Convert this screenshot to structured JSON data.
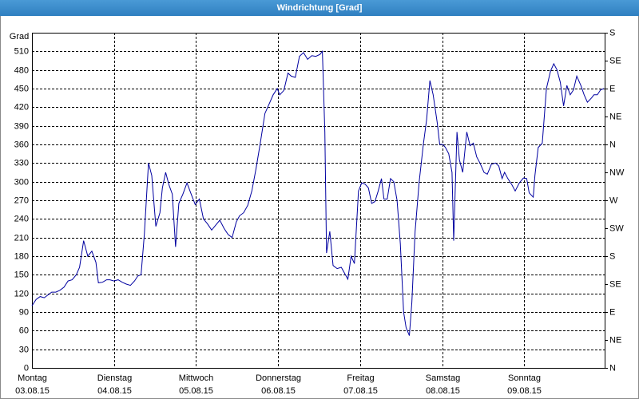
{
  "chart_data": {
    "type": "line",
    "title": "Windrichtung [Grad]",
    "ylabel": "Grad",
    "xlim": [
      0,
      6.98
    ],
    "xticks": [
      {
        "value": 0,
        "label": [
          "Montag",
          "03.08.15"
        ]
      },
      {
        "value": 1,
        "label": [
          "Dienstag",
          "04.08.15"
        ]
      },
      {
        "value": 2,
        "label": [
          "Mittwoch",
          "05.08.15"
        ]
      },
      {
        "value": 3,
        "label": [
          "Donnerstag",
          "06.08.15"
        ]
      },
      {
        "value": 4,
        "label": [
          "Freitag",
          "07.08.15"
        ]
      },
      {
        "value": 5,
        "label": [
          "Samstag",
          "08.08.15"
        ]
      },
      {
        "value": 6,
        "label": [
          "Sonntag",
          "09.08.15"
        ]
      }
    ],
    "ylim": [
      0,
      540
    ],
    "yticks": [
      0,
      30,
      60,
      90,
      120,
      150,
      180,
      210,
      240,
      270,
      300,
      330,
      360,
      390,
      420,
      450,
      480,
      510
    ],
    "y2lim": [
      0,
      540
    ],
    "y2ticks": [
      {
        "value": 0,
        "label": "N"
      },
      {
        "value": 45,
        "label": "NE"
      },
      {
        "value": 90,
        "label": "E"
      },
      {
        "value": 135,
        "label": "SE"
      },
      {
        "value": 180,
        "label": "S"
      },
      {
        "value": 225,
        "label": "SW"
      },
      {
        "value": 270,
        "label": "W"
      },
      {
        "value": 315,
        "label": "NW"
      },
      {
        "value": 360,
        "label": "N"
      },
      {
        "value": 405,
        "label": "NE"
      },
      {
        "value": 450,
        "label": "E"
      },
      {
        "value": 495,
        "label": "SE"
      },
      {
        "value": 540,
        "label": "S"
      }
    ],
    "grid": true,
    "series": [
      {
        "color": "#0000a0",
        "x": [
          0,
          0.05,
          0.1,
          0.15,
          0.19,
          0.24,
          0.29,
          0.34,
          0.39,
          0.44,
          0.49,
          0.54,
          0.58,
          0.63,
          0.68,
          0.73,
          0.78,
          0.81,
          0.86,
          0.91,
          0.95,
          1.0,
          1.05,
          1.1,
          1.15,
          1.2,
          1.25,
          1.29,
          1.33,
          1.37,
          1.42,
          1.46,
          1.51,
          1.56,
          1.59,
          1.63,
          1.67,
          1.71,
          1.75,
          1.79,
          1.84,
          1.89,
          1.94,
          1.99,
          2.04,
          2.09,
          2.14,
          2.19,
          2.24,
          2.29,
          2.34,
          2.39,
          2.44,
          2.49,
          2.53,
          2.58,
          2.63,
          2.68,
          2.73,
          2.78,
          2.84,
          2.89,
          2.94,
          2.99,
          3.02,
          3.07,
          3.12,
          3.16,
          3.21,
          3.26,
          3.31,
          3.36,
          3.41,
          3.46,
          3.51,
          3.54,
          3.57,
          3.59,
          3.63,
          3.67,
          3.72,
          3.77,
          3.82,
          3.85,
          3.89,
          3.93,
          3.98,
          4.02,
          4.06,
          4.1,
          4.14,
          4.18,
          4.22,
          4.26,
          4.29,
          4.33,
          4.37,
          4.41,
          4.45,
          4.49,
          4.53,
          4.56,
          4.6,
          4.63,
          4.67,
          4.72,
          4.77,
          4.81,
          4.85,
          4.89,
          4.94,
          4.97,
          5.01,
          5.04,
          5.08,
          5.12,
          5.14,
          5.18,
          5.21,
          5.25,
          5.3,
          5.34,
          5.38,
          5.42,
          5.46,
          5.51,
          5.55,
          5.6,
          5.65,
          5.69,
          5.73,
          5.76,
          5.8,
          5.85,
          5.89,
          5.94,
          5.99,
          6.03,
          6.06,
          6.11,
          6.13,
          6.17,
          6.22,
          6.27,
          6.32,
          6.36,
          6.4,
          6.44,
          6.48,
          6.52,
          6.56,
          6.6,
          6.64,
          6.69,
          6.73,
          6.77,
          6.82,
          6.85,
          6.89,
          6.93,
          6.97
        ],
        "values": [
          100,
          110,
          115,
          113,
          117,
          122,
          122,
          125,
          130,
          140,
          142,
          150,
          162,
          205,
          180,
          188,
          170,
          137,
          138,
          142,
          142,
          140,
          142,
          138,
          135,
          133,
          140,
          148,
          150,
          215,
          330,
          310,
          228,
          250,
          290,
          315,
          295,
          280,
          195,
          265,
          280,
          298,
          280,
          263,
          272,
          240,
          232,
          222,
          230,
          238,
          225,
          215,
          210,
          235,
          245,
          250,
          262,
          285,
          320,
          360,
          410,
          425,
          440,
          450,
          440,
          447,
          475,
          470,
          468,
          502,
          508,
          497,
          503,
          502,
          505,
          510,
          380,
          185,
          220,
          165,
          160,
          162,
          150,
          143,
          180,
          168,
          285,
          298,
          296,
          290,
          265,
          268,
          285,
          305,
          272,
          272,
          305,
          300,
          270,
          200,
          90,
          65,
          52,
          105,
          220,
          300,
          360,
          400,
          463,
          440,
          395,
          360,
          360,
          355,
          345,
          315,
          205,
          380,
          335,
          315,
          380,
          358,
          362,
          340,
          330,
          315,
          312,
          328,
          330,
          325,
          305,
          315,
          305,
          295,
          285,
          298,
          306,
          305,
          282,
          275,
          310,
          355,
          362,
          450,
          478,
          490,
          480,
          460,
          422,
          455,
          440,
          448,
          470,
          455,
          440,
          428,
          435,
          440,
          440,
          448,
          450
        ]
      }
    ]
  }
}
